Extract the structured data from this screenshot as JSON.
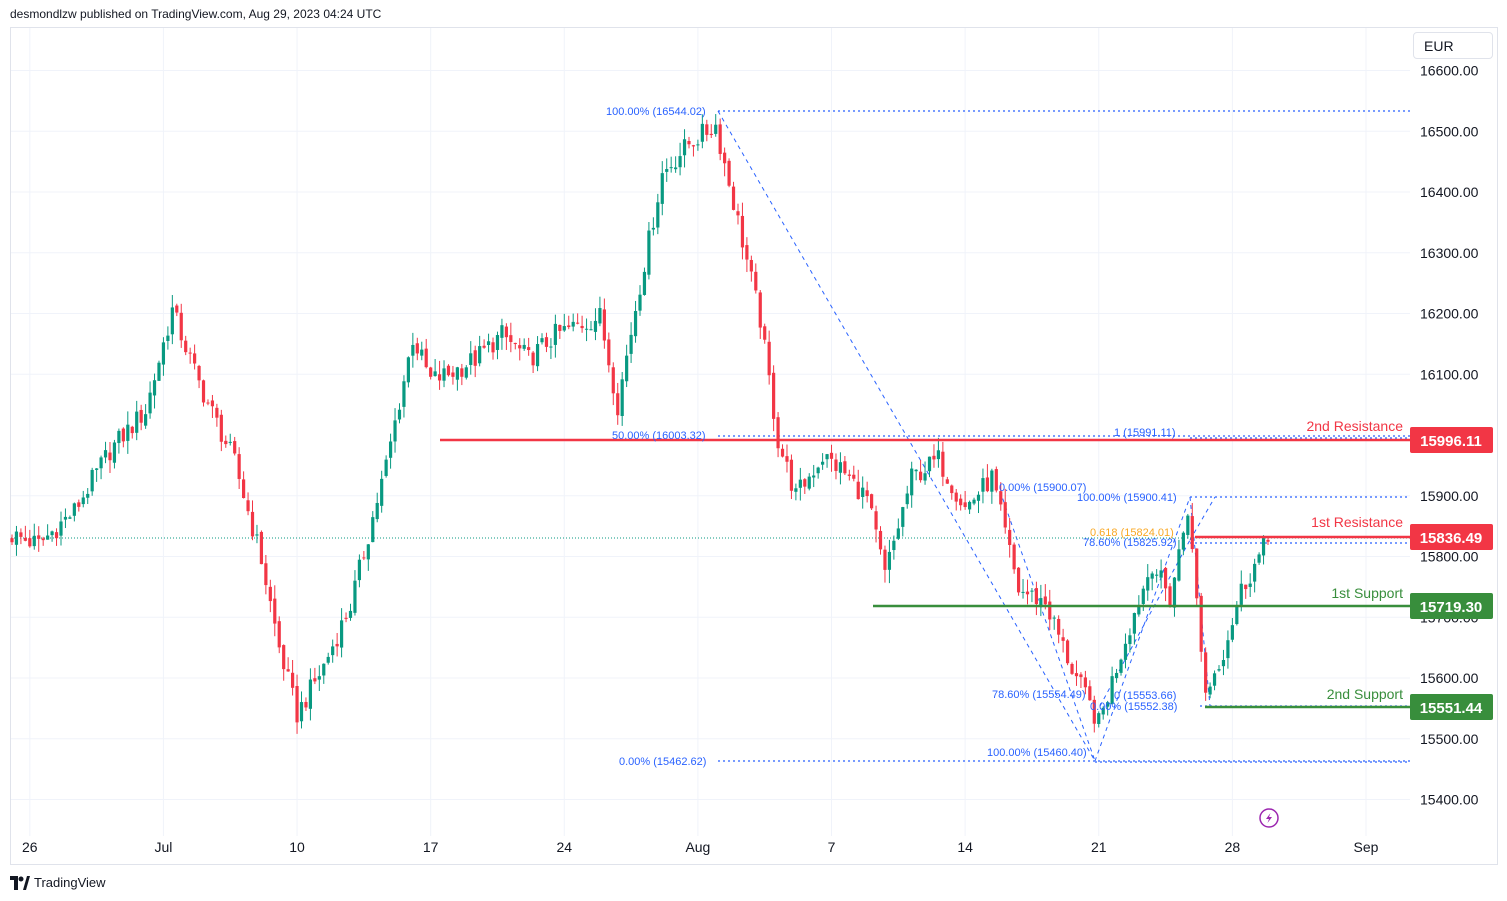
{
  "header": {
    "text": "desmondlzw published on TradingView.com, Aug 29, 2023 04:24 UTC"
  },
  "currency": "EUR",
  "footer": {
    "brand": "TradingView"
  },
  "colors": {
    "up": "#089981",
    "down": "#f23645",
    "resistance": "#f23645",
    "support": "#388e3c",
    "fib": "#2962ff",
    "fib_highlight": "#f9a825",
    "badge_red": "#f23645",
    "badge_green": "#388e3c",
    "grid": "#f0f3fa"
  },
  "chart_data": {
    "type": "candlestick",
    "ylim": [
      15340,
      16670
    ],
    "y_ticks": [
      {
        "value": 16600,
        "label": "16600.00"
      },
      {
        "value": 16500,
        "label": "16500.00"
      },
      {
        "value": 16400,
        "label": "16400.00"
      },
      {
        "value": 16300,
        "label": "16300.00"
      },
      {
        "value": 16200,
        "label": "16200.00"
      },
      {
        "value": 16100,
        "label": "16100.00"
      },
      {
        "value": 15900,
        "label": "15900.00"
      },
      {
        "value": 15800,
        "label": "15800.00"
      },
      {
        "value": 15700,
        "label": "15700.00"
      },
      {
        "value": 15600,
        "label": "15600.00"
      },
      {
        "value": 15500,
        "label": "15500.00"
      },
      {
        "value": 15400,
        "label": "15400.00"
      }
    ],
    "x_ticks": [
      {
        "i": 4,
        "label": "26"
      },
      {
        "i": 34,
        "label": "Jul"
      },
      {
        "i": 64,
        "label": "10"
      },
      {
        "i": 94,
        "label": "17"
      },
      {
        "i": 124,
        "label": "24"
      },
      {
        "i": 154,
        "label": "Aug"
      },
      {
        "i": 184,
        "label": "7"
      },
      {
        "i": 214,
        "label": "14"
      },
      {
        "i": 244,
        "label": "21"
      },
      {
        "i": 274,
        "label": "28"
      },
      {
        "i": 304,
        "label": "Sep"
      }
    ],
    "price_points": [
      [
        0,
        15835
      ],
      [
        6,
        15820
      ],
      [
        14,
        15875
      ],
      [
        22,
        15975
      ],
      [
        30,
        16040
      ],
      [
        36,
        16205
      ],
      [
        42,
        16085
      ],
      [
        50,
        15955
      ],
      [
        56,
        15795
      ],
      [
        60,
        15650
      ],
      [
        64,
        15540
      ],
      [
        70,
        15620
      ],
      [
        76,
        15720
      ],
      [
        84,
        15950
      ],
      [
        90,
        16160
      ],
      [
        94,
        16090
      ],
      [
        98,
        16100
      ],
      [
        104,
        16125
      ],
      [
        110,
        16165
      ],
      [
        116,
        16125
      ],
      [
        122,
        16165
      ],
      [
        132,
        16195
      ],
      [
        136,
        16050
      ],
      [
        140,
        16210
      ],
      [
        146,
        16430
      ],
      [
        152,
        16480
      ],
      [
        158,
        16510
      ],
      [
        164,
        16320
      ],
      [
        168,
        16190
      ],
      [
        172,
        15990
      ],
      [
        176,
        15900
      ],
      [
        182,
        15965
      ],
      [
        186,
        15945
      ],
      [
        192,
        15895
      ],
      [
        196,
        15770
      ],
      [
        202,
        15930
      ],
      [
        208,
        15960
      ],
      [
        214,
        15880
      ],
      [
        220,
        15930
      ],
      [
        226,
        15745
      ],
      [
        232,
        15725
      ],
      [
        238,
        15615
      ],
      [
        244,
        15525
      ],
      [
        250,
        15665
      ],
      [
        256,
        15790
      ],
      [
        260,
        15730
      ],
      [
        264,
        15880
      ],
      [
        268,
        15575
      ],
      [
        272,
        15645
      ],
      [
        276,
        15745
      ],
      [
        282,
        15826
      ]
    ],
    "levels": [
      {
        "name": "2nd Resistance",
        "value": 15996.11,
        "label": "15996.11",
        "kind": "resistance"
      },
      {
        "name": "1st Resistance",
        "value": 15836.49,
        "label": "15836.49",
        "kind": "resistance"
      },
      {
        "name": "1st Support",
        "value": 15719.3,
        "label": "15719.30",
        "kind": "support"
      },
      {
        "name": "2nd Support",
        "value": 15551.44,
        "label": "15551.44",
        "kind": "support"
      }
    ],
    "fib_labels": [
      {
        "text": "100.00% (16544.02)",
        "value": 16544.02
      },
      {
        "text": "50.00% (16003.32)",
        "value": 16003.32
      },
      {
        "text": "0.00% (15462.62)",
        "value": 15462.62
      },
      {
        "text": "1 (15991.11)",
        "value": 15991.11
      },
      {
        "text": "0.00% (15900.07)",
        "value": 15900.07
      },
      {
        "text": "100.00% (15900.41)",
        "value": 15900.41
      },
      {
        "text": "0.618 (15824.01)",
        "value": 15824.01
      },
      {
        "text": "78.60% (15825.92)",
        "value": 15825.92
      },
      {
        "text": "78.60% (15554.49)",
        "value": 15554.49
      },
      {
        "text": "0 (15553.66)",
        "value": 15553.66
      },
      {
        "text": "0.00% (15552.38)",
        "value": 15552.38
      },
      {
        "text": "100.00% (15460.40)",
        "value": 15460.4
      }
    ],
    "current_price": 15826
  }
}
